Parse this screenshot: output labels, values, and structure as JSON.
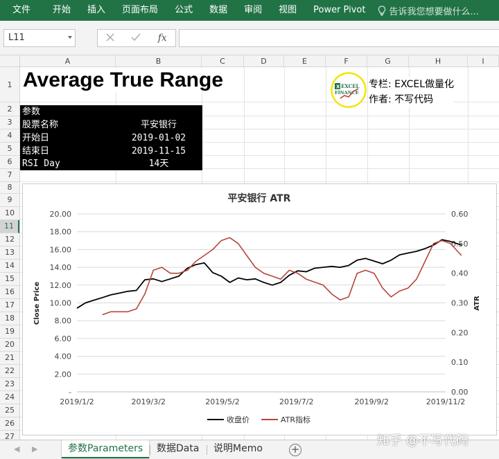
{
  "ribbon": {
    "tabs": [
      "文件",
      "开始",
      "插入",
      "页面布局",
      "公式",
      "数据",
      "审阅",
      "视图",
      "Power Pivot"
    ],
    "tell_me": "告诉我您想要做什么..."
  },
  "formula_bar": {
    "name_box": "L11",
    "fx_label": "fx",
    "formula": ""
  },
  "columns": [
    "A",
    "B",
    "C",
    "D",
    "E",
    "F",
    "G",
    "H",
    "I"
  ],
  "rows": [
    "1",
    "2",
    "3",
    "4",
    "5",
    "6",
    "7",
    "8",
    "9",
    "10",
    "11",
    "12",
    "13",
    "14",
    "15",
    "16",
    "17",
    "18",
    "19",
    "20",
    "21",
    "22",
    "23",
    "24",
    "25",
    "26",
    "27",
    "28"
  ],
  "selected_row": "11",
  "sheet": {
    "title": "Average True Range",
    "params": {
      "header": "参数",
      "rows": [
        {
          "label": "股票名称",
          "value": "平安银行"
        },
        {
          "label": "开始日",
          "value": "2019-01-02"
        },
        {
          "label": "结束日",
          "value": "2019-11-15"
        },
        {
          "label": "RSI Day",
          "value": "14天"
        }
      ]
    },
    "logo": {
      "text_top": "EXCEL",
      "text_bottom": "FINANCE"
    },
    "column_info": {
      "label1": "专栏:",
      "value1": "EXCEL做量化",
      "label2": "作者:",
      "value2": "不写代码"
    }
  },
  "chart_data": {
    "type": "line",
    "title": "平安银行 ATR",
    "ylabel": "Close Price",
    "y2label": "ATR",
    "x_tick_labels": [
      "2019/1/2",
      "2019/3/2",
      "2019/5/2",
      "2019/7/2",
      "2019/9/2",
      "2019/11/2"
    ],
    "y_tick_labels": [
      "-",
      "2.00",
      "4.00",
      "6.00",
      "8.00",
      "10.00",
      "12.00",
      "14.00",
      "16.00",
      "18.00",
      "20.00"
    ],
    "y2_tick_labels": [
      "0.00",
      "0.10",
      "0.20",
      "0.30",
      "0.40",
      "0.50",
      "0.60"
    ],
    "ylim": [
      0,
      20
    ],
    "y2lim": [
      0,
      0.6
    ],
    "grid": true,
    "legend_position": "bottom",
    "series": [
      {
        "name": "收盘价",
        "axis": "left",
        "color": "#000000",
        "x": [
          "2019-01-02",
          "2019-01-09",
          "2019-01-16",
          "2019-01-23",
          "2019-01-30",
          "2019-02-06",
          "2019-02-13",
          "2019-02-20",
          "2019-02-27",
          "2019-03-06",
          "2019-03-13",
          "2019-03-20",
          "2019-03-27",
          "2019-04-03",
          "2019-04-10",
          "2019-04-17",
          "2019-04-24",
          "2019-05-01",
          "2019-05-08",
          "2019-05-15",
          "2019-05-22",
          "2019-05-29",
          "2019-06-05",
          "2019-06-12",
          "2019-06-19",
          "2019-06-26",
          "2019-07-03",
          "2019-07-10",
          "2019-07-17",
          "2019-07-24",
          "2019-07-31",
          "2019-08-07",
          "2019-08-14",
          "2019-08-21",
          "2019-08-28",
          "2019-09-04",
          "2019-09-11",
          "2019-09-18",
          "2019-09-25",
          "2019-10-02",
          "2019-10-09",
          "2019-10-16",
          "2019-10-23",
          "2019-10-30",
          "2019-11-06",
          "2019-11-15"
        ],
        "y": [
          9.4,
          10.0,
          10.3,
          10.6,
          10.9,
          11.1,
          11.3,
          11.4,
          12.6,
          12.7,
          12.4,
          12.7,
          13.0,
          13.9,
          14.3,
          14.5,
          13.4,
          13.0,
          12.3,
          12.8,
          12.6,
          12.7,
          12.3,
          12.0,
          12.3,
          13.1,
          13.6,
          13.5,
          13.9,
          14.0,
          14.1,
          14.0,
          14.2,
          14.8,
          15.0,
          14.7,
          14.4,
          14.8,
          15.4,
          15.6,
          15.8,
          16.1,
          16.5,
          17.1,
          16.9,
          16.5
        ]
      },
      {
        "name": "ATR指标",
        "axis": "right",
        "color": "#b5443d",
        "x": [
          "2019-01-23",
          "2019-01-30",
          "2019-02-06",
          "2019-02-13",
          "2019-02-20",
          "2019-02-27",
          "2019-03-06",
          "2019-03-13",
          "2019-03-20",
          "2019-03-27",
          "2019-04-03",
          "2019-04-10",
          "2019-04-17",
          "2019-04-24",
          "2019-05-01",
          "2019-05-08",
          "2019-05-15",
          "2019-05-22",
          "2019-05-29",
          "2019-06-05",
          "2019-06-12",
          "2019-06-19",
          "2019-06-26",
          "2019-07-03",
          "2019-07-10",
          "2019-07-17",
          "2019-07-24",
          "2019-07-31",
          "2019-08-07",
          "2019-08-14",
          "2019-08-21",
          "2019-08-28",
          "2019-09-04",
          "2019-09-11",
          "2019-09-18",
          "2019-09-25",
          "2019-10-02",
          "2019-10-09",
          "2019-10-16",
          "2019-10-23",
          "2019-10-30",
          "2019-11-06",
          "2019-11-15"
        ],
        "y": [
          0.26,
          0.27,
          0.27,
          0.27,
          0.28,
          0.33,
          0.41,
          0.42,
          0.4,
          0.4,
          0.41,
          0.44,
          0.46,
          0.48,
          0.51,
          0.52,
          0.5,
          0.46,
          0.42,
          0.4,
          0.39,
          0.38,
          0.41,
          0.4,
          0.38,
          0.37,
          0.36,
          0.33,
          0.31,
          0.32,
          0.4,
          0.41,
          0.4,
          0.35,
          0.32,
          0.34,
          0.35,
          0.38,
          0.44,
          0.5,
          0.51,
          0.5,
          0.46
        ]
      }
    ]
  }
}
